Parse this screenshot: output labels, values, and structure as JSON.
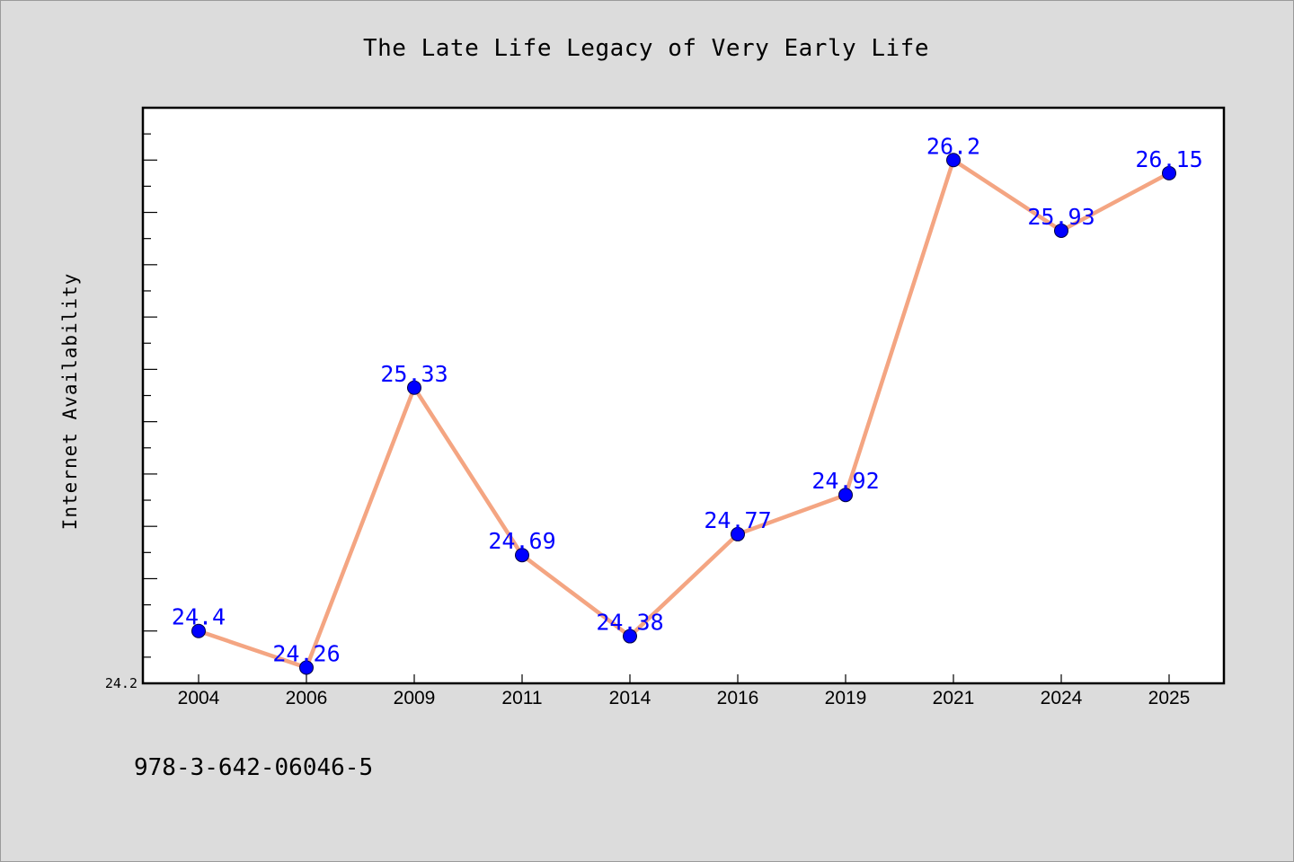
{
  "chart_data": {
    "type": "line",
    "title": "The Late Life Legacy of Very Early Life",
    "xlabel": "",
    "ylabel": "Internet Availability",
    "categories": [
      "2004",
      "2006",
      "2009",
      "2011",
      "2014",
      "2016",
      "2019",
      "2021",
      "2024",
      "2025"
    ],
    "series": [
      {
        "values": [
          24.4,
          24.26,
          25.33,
          24.69,
          24.38,
          24.77,
          24.92,
          26.2,
          25.93,
          26.15
        ],
        "labels": [
          "24.4",
          "24.26",
          "25.33",
          "24.69",
          "24.38",
          "24.77",
          "24.92",
          "26.2",
          "25.93",
          "26.15"
        ]
      }
    ],
    "ylim": [
      24.2,
      26.4
    ],
    "y_tick_labels": [
      "24.2"
    ],
    "grid": false,
    "legend": "none",
    "colors": {
      "line": "#f4a582",
      "marker": "#0000ff",
      "label": "#0000ff",
      "plot_bg": "#ffffff",
      "figure_bg": "#dcdcdc"
    }
  },
  "footer": {
    "isbn": "978-3-642-06046-5"
  }
}
